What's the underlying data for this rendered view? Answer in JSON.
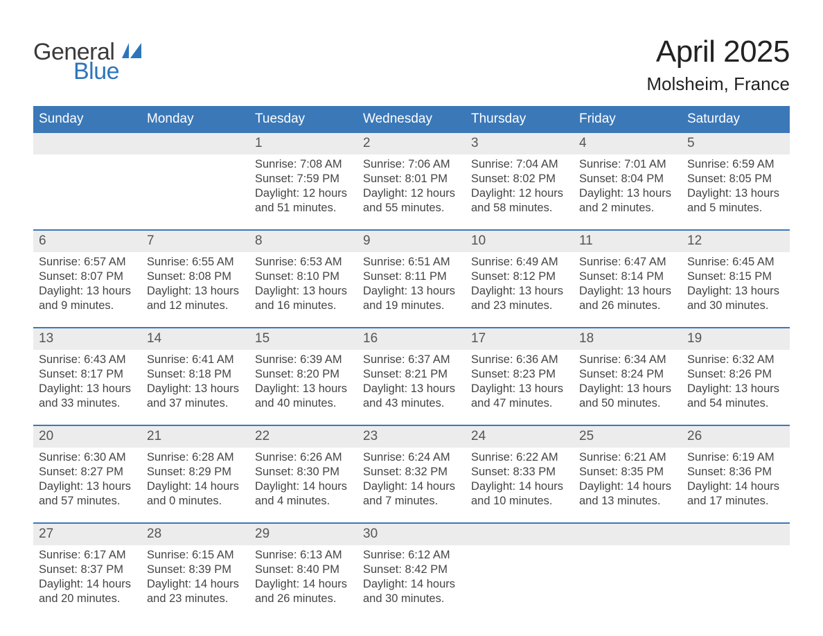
{
  "logo": {
    "word1": "General",
    "word2": "Blue",
    "icon_color": "#2d75bb"
  },
  "title": {
    "month_year": "April 2025",
    "location": "Molsheim, France"
  },
  "colors": {
    "header_blue": "#3b78b8",
    "day_header_bg": "#ececed",
    "divider": "#3b78b8",
    "text": "#333333",
    "background": "#ffffff"
  },
  "weekdays": [
    "Sunday",
    "Monday",
    "Tuesday",
    "Wednesday",
    "Thursday",
    "Friday",
    "Saturday"
  ],
  "weeks": [
    {
      "days": [
        {
          "num": "",
          "sunrise": "",
          "sunset": "",
          "daylight": ""
        },
        {
          "num": "",
          "sunrise": "",
          "sunset": "",
          "daylight": ""
        },
        {
          "num": "1",
          "sunrise": "Sunrise: 7:08 AM",
          "sunset": "Sunset: 7:59 PM",
          "daylight": "Daylight: 12 hours and 51 minutes."
        },
        {
          "num": "2",
          "sunrise": "Sunrise: 7:06 AM",
          "sunset": "Sunset: 8:01 PM",
          "daylight": "Daylight: 12 hours and 55 minutes."
        },
        {
          "num": "3",
          "sunrise": "Sunrise: 7:04 AM",
          "sunset": "Sunset: 8:02 PM",
          "daylight": "Daylight: 12 hours and 58 minutes."
        },
        {
          "num": "4",
          "sunrise": "Sunrise: 7:01 AM",
          "sunset": "Sunset: 8:04 PM",
          "daylight": "Daylight: 13 hours and 2 minutes."
        },
        {
          "num": "5",
          "sunrise": "Sunrise: 6:59 AM",
          "sunset": "Sunset: 8:05 PM",
          "daylight": "Daylight: 13 hours and 5 minutes."
        }
      ]
    },
    {
      "days": [
        {
          "num": "6",
          "sunrise": "Sunrise: 6:57 AM",
          "sunset": "Sunset: 8:07 PM",
          "daylight": "Daylight: 13 hours and 9 minutes."
        },
        {
          "num": "7",
          "sunrise": "Sunrise: 6:55 AM",
          "sunset": "Sunset: 8:08 PM",
          "daylight": "Daylight: 13 hours and 12 minutes."
        },
        {
          "num": "8",
          "sunrise": "Sunrise: 6:53 AM",
          "sunset": "Sunset: 8:10 PM",
          "daylight": "Daylight: 13 hours and 16 minutes."
        },
        {
          "num": "9",
          "sunrise": "Sunrise: 6:51 AM",
          "sunset": "Sunset: 8:11 PM",
          "daylight": "Daylight: 13 hours and 19 minutes."
        },
        {
          "num": "10",
          "sunrise": "Sunrise: 6:49 AM",
          "sunset": "Sunset: 8:12 PM",
          "daylight": "Daylight: 13 hours and 23 minutes."
        },
        {
          "num": "11",
          "sunrise": "Sunrise: 6:47 AM",
          "sunset": "Sunset: 8:14 PM",
          "daylight": "Daylight: 13 hours and 26 minutes."
        },
        {
          "num": "12",
          "sunrise": "Sunrise: 6:45 AM",
          "sunset": "Sunset: 8:15 PM",
          "daylight": "Daylight: 13 hours and 30 minutes."
        }
      ]
    },
    {
      "days": [
        {
          "num": "13",
          "sunrise": "Sunrise: 6:43 AM",
          "sunset": "Sunset: 8:17 PM",
          "daylight": "Daylight: 13 hours and 33 minutes."
        },
        {
          "num": "14",
          "sunrise": "Sunrise: 6:41 AM",
          "sunset": "Sunset: 8:18 PM",
          "daylight": "Daylight: 13 hours and 37 minutes."
        },
        {
          "num": "15",
          "sunrise": "Sunrise: 6:39 AM",
          "sunset": "Sunset: 8:20 PM",
          "daylight": "Daylight: 13 hours and 40 minutes."
        },
        {
          "num": "16",
          "sunrise": "Sunrise: 6:37 AM",
          "sunset": "Sunset: 8:21 PM",
          "daylight": "Daylight: 13 hours and 43 minutes."
        },
        {
          "num": "17",
          "sunrise": "Sunrise: 6:36 AM",
          "sunset": "Sunset: 8:23 PM",
          "daylight": "Daylight: 13 hours and 47 minutes."
        },
        {
          "num": "18",
          "sunrise": "Sunrise: 6:34 AM",
          "sunset": "Sunset: 8:24 PM",
          "daylight": "Daylight: 13 hours and 50 minutes."
        },
        {
          "num": "19",
          "sunrise": "Sunrise: 6:32 AM",
          "sunset": "Sunset: 8:26 PM",
          "daylight": "Daylight: 13 hours and 54 minutes."
        }
      ]
    },
    {
      "days": [
        {
          "num": "20",
          "sunrise": "Sunrise: 6:30 AM",
          "sunset": "Sunset: 8:27 PM",
          "daylight": "Daylight: 13 hours and 57 minutes."
        },
        {
          "num": "21",
          "sunrise": "Sunrise: 6:28 AM",
          "sunset": "Sunset: 8:29 PM",
          "daylight": "Daylight: 14 hours and 0 minutes."
        },
        {
          "num": "22",
          "sunrise": "Sunrise: 6:26 AM",
          "sunset": "Sunset: 8:30 PM",
          "daylight": "Daylight: 14 hours and 4 minutes."
        },
        {
          "num": "23",
          "sunrise": "Sunrise: 6:24 AM",
          "sunset": "Sunset: 8:32 PM",
          "daylight": "Daylight: 14 hours and 7 minutes."
        },
        {
          "num": "24",
          "sunrise": "Sunrise: 6:22 AM",
          "sunset": "Sunset: 8:33 PM",
          "daylight": "Daylight: 14 hours and 10 minutes."
        },
        {
          "num": "25",
          "sunrise": "Sunrise: 6:21 AM",
          "sunset": "Sunset: 8:35 PM",
          "daylight": "Daylight: 14 hours and 13 minutes."
        },
        {
          "num": "26",
          "sunrise": "Sunrise: 6:19 AM",
          "sunset": "Sunset: 8:36 PM",
          "daylight": "Daylight: 14 hours and 17 minutes."
        }
      ]
    },
    {
      "days": [
        {
          "num": "27",
          "sunrise": "Sunrise: 6:17 AM",
          "sunset": "Sunset: 8:37 PM",
          "daylight": "Daylight: 14 hours and 20 minutes."
        },
        {
          "num": "28",
          "sunrise": "Sunrise: 6:15 AM",
          "sunset": "Sunset: 8:39 PM",
          "daylight": "Daylight: 14 hours and 23 minutes."
        },
        {
          "num": "29",
          "sunrise": "Sunrise: 6:13 AM",
          "sunset": "Sunset: 8:40 PM",
          "daylight": "Daylight: 14 hours and 26 minutes."
        },
        {
          "num": "30",
          "sunrise": "Sunrise: 6:12 AM",
          "sunset": "Sunset: 8:42 PM",
          "daylight": "Daylight: 14 hours and 30 minutes."
        },
        {
          "num": "",
          "sunrise": "",
          "sunset": "",
          "daylight": ""
        },
        {
          "num": "",
          "sunrise": "",
          "sunset": "",
          "daylight": ""
        },
        {
          "num": "",
          "sunrise": "",
          "sunset": "",
          "daylight": ""
        }
      ]
    }
  ]
}
